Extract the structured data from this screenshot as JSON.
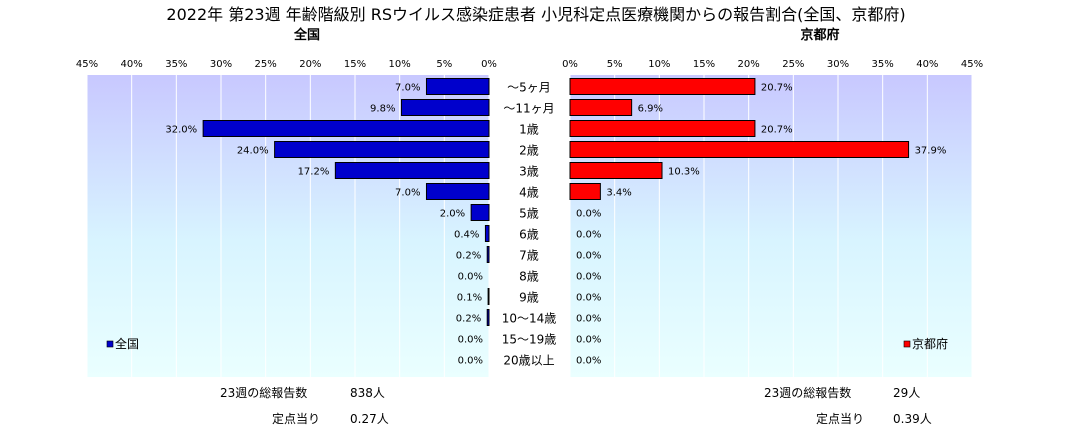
{
  "title": "2022年 第23週 年齢階級別 RSウイルス感染症患者 小児科定点医療機関からの報告割合(全国、京都府)",
  "chart_data": [
    {
      "type": "bar",
      "orientation": "horizontal",
      "title": "全国",
      "direction": "right-to-left",
      "xlim": [
        0,
        45
      ],
      "xticks": [
        "0%",
        "5%",
        "10%",
        "15%",
        "20%",
        "25%",
        "30%",
        "35%",
        "40%",
        "45%"
      ],
      "categories": [
        "～5ヶ月",
        "～11ヶ月",
        "1歳",
        "2歳",
        "3歳",
        "4歳",
        "5歳",
        "6歳",
        "7歳",
        "8歳",
        "9歳",
        "10～14歳",
        "15～19歳",
        "20歳以上"
      ],
      "series": [
        {
          "name": "全国",
          "color": "#0000cc",
          "values": [
            7.0,
            9.8,
            32.0,
            24.0,
            17.2,
            7.0,
            2.0,
            0.4,
            0.2,
            0.0,
            0.1,
            0.2,
            0.0,
            0.0
          ],
          "labels": [
            "7.0%",
            "9.8%",
            "32.0%",
            "24.0%",
            "17.2%",
            "7.0%",
            "2.0%",
            "0.4%",
            "0.2%",
            "0.0%",
            "0.1%",
            "0.2%",
            "0.0%",
            "0.0%"
          ]
        }
      ],
      "grid": true,
      "legend_position": "bottom-left"
    },
    {
      "type": "bar",
      "orientation": "horizontal",
      "title": "京都府",
      "direction": "left-to-right",
      "xlim": [
        0,
        45
      ],
      "xticks": [
        "0%",
        "5%",
        "10%",
        "15%",
        "20%",
        "25%",
        "30%",
        "35%",
        "40%",
        "45%"
      ],
      "categories": [
        "～5ヶ月",
        "～11ヶ月",
        "1歳",
        "2歳",
        "3歳",
        "4歳",
        "5歳",
        "6歳",
        "7歳",
        "8歳",
        "9歳",
        "10～14歳",
        "15～19歳",
        "20歳以上"
      ],
      "series": [
        {
          "name": "京都府",
          "color": "#ff0000",
          "values": [
            20.7,
            6.9,
            20.7,
            37.9,
            10.3,
            3.4,
            0.0,
            0.0,
            0.0,
            0.0,
            0.0,
            0.0,
            0.0,
            0.0
          ],
          "labels": [
            "20.7%",
            "6.9%",
            "20.7%",
            "37.9%",
            "10.3%",
            "3.4%",
            "0.0%",
            "0.0%",
            "0.0%",
            "0.0%",
            "0.0%",
            "0.0%",
            "0.0%",
            "0.0%"
          ]
        }
      ],
      "grid": true,
      "legend_position": "bottom-right"
    }
  ],
  "summary": {
    "national": {
      "total_label": "23週の総報告数",
      "total_value": "838人",
      "per_point_label": "定点当り",
      "per_point_value": "0.27人"
    },
    "kyoto": {
      "total_label": "23週の総報告数",
      "total_value": "29人",
      "per_point_label": "定点当り",
      "per_point_value": "0.39人"
    }
  }
}
